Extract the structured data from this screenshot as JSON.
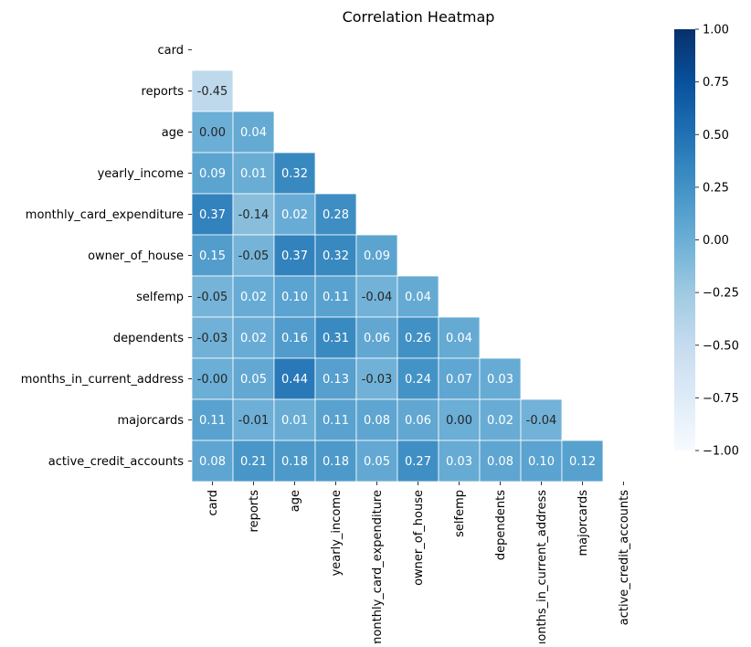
{
  "chart_data": {
    "type": "heatmap",
    "title": "Correlation Heatmap",
    "variables": [
      "card",
      "reports",
      "age",
      "yearly_income",
      "monthly_card_expenditure",
      "owner_of_house",
      "selfemp",
      "dependents",
      "months_in_current_address",
      "majorcards",
      "active_credit_accounts"
    ],
    "cells": [
      {
        "row": "reports",
        "col": "card",
        "value": -0.45,
        "label": "-0.45"
      },
      {
        "row": "age",
        "col": "card",
        "value": 0.0,
        "label": "0.00"
      },
      {
        "row": "age",
        "col": "reports",
        "value": 0.04,
        "label": "0.04"
      },
      {
        "row": "yearly_income",
        "col": "card",
        "value": 0.09,
        "label": "0.09"
      },
      {
        "row": "yearly_income",
        "col": "reports",
        "value": 0.01,
        "label": "0.01"
      },
      {
        "row": "yearly_income",
        "col": "age",
        "value": 0.32,
        "label": "0.32"
      },
      {
        "row": "monthly_card_expenditure",
        "col": "card",
        "value": 0.37,
        "label": "0.37"
      },
      {
        "row": "monthly_card_expenditure",
        "col": "reports",
        "value": -0.14,
        "label": "-0.14"
      },
      {
        "row": "monthly_card_expenditure",
        "col": "age",
        "value": 0.02,
        "label": "0.02"
      },
      {
        "row": "monthly_card_expenditure",
        "col": "yearly_income",
        "value": 0.28,
        "label": "0.28"
      },
      {
        "row": "owner_of_house",
        "col": "card",
        "value": 0.15,
        "label": "0.15"
      },
      {
        "row": "owner_of_house",
        "col": "reports",
        "value": -0.05,
        "label": "-0.05"
      },
      {
        "row": "owner_of_house",
        "col": "age",
        "value": 0.37,
        "label": "0.37"
      },
      {
        "row": "owner_of_house",
        "col": "yearly_income",
        "value": 0.32,
        "label": "0.32"
      },
      {
        "row": "owner_of_house",
        "col": "monthly_card_expenditure",
        "value": 0.09,
        "label": "0.09"
      },
      {
        "row": "selfemp",
        "col": "card",
        "value": -0.05,
        "label": "-0.05"
      },
      {
        "row": "selfemp",
        "col": "reports",
        "value": 0.02,
        "label": "0.02"
      },
      {
        "row": "selfemp",
        "col": "age",
        "value": 0.1,
        "label": "0.10"
      },
      {
        "row": "selfemp",
        "col": "yearly_income",
        "value": 0.11,
        "label": "0.11"
      },
      {
        "row": "selfemp",
        "col": "monthly_card_expenditure",
        "value": -0.04,
        "label": "-0.04"
      },
      {
        "row": "selfemp",
        "col": "owner_of_house",
        "value": 0.04,
        "label": "0.04"
      },
      {
        "row": "dependents",
        "col": "card",
        "value": -0.03,
        "label": "-0.03"
      },
      {
        "row": "dependents",
        "col": "reports",
        "value": 0.02,
        "label": "0.02"
      },
      {
        "row": "dependents",
        "col": "age",
        "value": 0.16,
        "label": "0.16"
      },
      {
        "row": "dependents",
        "col": "yearly_income",
        "value": 0.31,
        "label": "0.31"
      },
      {
        "row": "dependents",
        "col": "monthly_card_expenditure",
        "value": 0.06,
        "label": "0.06"
      },
      {
        "row": "dependents",
        "col": "owner_of_house",
        "value": 0.26,
        "label": "0.26"
      },
      {
        "row": "dependents",
        "col": "selfemp",
        "value": 0.04,
        "label": "0.04"
      },
      {
        "row": "months_in_current_address",
        "col": "card",
        "value": -0.0,
        "label": "-0.00"
      },
      {
        "row": "months_in_current_address",
        "col": "reports",
        "value": 0.05,
        "label": "0.05"
      },
      {
        "row": "months_in_current_address",
        "col": "age",
        "value": 0.44,
        "label": "0.44"
      },
      {
        "row": "months_in_current_address",
        "col": "yearly_income",
        "value": 0.13,
        "label": "0.13"
      },
      {
        "row": "months_in_current_address",
        "col": "monthly_card_expenditure",
        "value": -0.03,
        "label": "-0.03"
      },
      {
        "row": "months_in_current_address",
        "col": "owner_of_house",
        "value": 0.24,
        "label": "0.24"
      },
      {
        "row": "months_in_current_address",
        "col": "selfemp",
        "value": 0.07,
        "label": "0.07"
      },
      {
        "row": "months_in_current_address",
        "col": "dependents",
        "value": 0.03,
        "label": "0.03"
      },
      {
        "row": "majorcards",
        "col": "card",
        "value": 0.11,
        "label": "0.11"
      },
      {
        "row": "majorcards",
        "col": "reports",
        "value": -0.01,
        "label": "-0.01"
      },
      {
        "row": "majorcards",
        "col": "age",
        "value": 0.01,
        "label": "0.01"
      },
      {
        "row": "majorcards",
        "col": "yearly_income",
        "value": 0.11,
        "label": "0.11"
      },
      {
        "row": "majorcards",
        "col": "monthly_card_expenditure",
        "value": 0.08,
        "label": "0.08"
      },
      {
        "row": "majorcards",
        "col": "owner_of_house",
        "value": 0.06,
        "label": "0.06"
      },
      {
        "row": "majorcards",
        "col": "selfemp",
        "value": 0.0,
        "label": "0.00"
      },
      {
        "row": "majorcards",
        "col": "dependents",
        "value": 0.02,
        "label": "0.02"
      },
      {
        "row": "majorcards",
        "col": "months_in_current_address",
        "value": -0.04,
        "label": "-0.04"
      },
      {
        "row": "active_credit_accounts",
        "col": "card",
        "value": 0.08,
        "label": "0.08"
      },
      {
        "row": "active_credit_accounts",
        "col": "reports",
        "value": 0.21,
        "label": "0.21"
      },
      {
        "row": "active_credit_accounts",
        "col": "age",
        "value": 0.18,
        "label": "0.18"
      },
      {
        "row": "active_credit_accounts",
        "col": "yearly_income",
        "value": 0.18,
        "label": "0.18"
      },
      {
        "row": "active_credit_accounts",
        "col": "monthly_card_expenditure",
        "value": 0.05,
        "label": "0.05"
      },
      {
        "row": "active_credit_accounts",
        "col": "owner_of_house",
        "value": 0.27,
        "label": "0.27"
      },
      {
        "row": "active_credit_accounts",
        "col": "selfemp",
        "value": 0.03,
        "label": "0.03"
      },
      {
        "row": "active_credit_accounts",
        "col": "dependents",
        "value": 0.08,
        "label": "0.08"
      },
      {
        "row": "active_credit_accounts",
        "col": "months_in_current_address",
        "value": 0.1,
        "label": "0.10"
      },
      {
        "row": "active_credit_accounts",
        "col": "majorcards",
        "value": 0.12,
        "label": "0.12"
      }
    ],
    "mask": "upper-triangle-and-diagonal",
    "colorbar": {
      "colormap": "Blues",
      "range": [
        -1.0,
        1.0
      ],
      "ticks": [
        1.0,
        0.75,
        0.5,
        0.25,
        0.0,
        -0.25,
        -0.5,
        -0.75,
        -1.0
      ],
      "tick_labels": [
        "1.00",
        "0.75",
        "0.50",
        "0.25",
        "0.00",
        "−0.25",
        "−0.50",
        "−0.75",
        "−1.00"
      ],
      "placement": "right"
    },
    "colors": {
      "blues_stops": [
        "#f7fbff",
        "#deebf7",
        "#c6dbef",
        "#9ecae1",
        "#6baed6",
        "#4292c6",
        "#2171b5",
        "#08519c",
        "#08306b"
      ],
      "cell_border": "#ffffff",
      "text_light": "#ffffff",
      "text_dark": "#262626"
    }
  }
}
